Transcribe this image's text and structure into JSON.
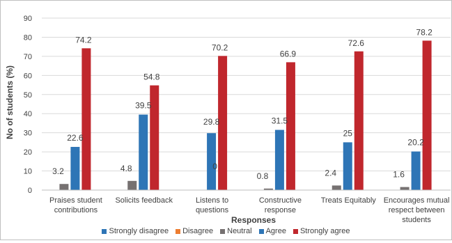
{
  "chart_data": {
    "type": "bar",
    "title": "",
    "xlabel": "Responses",
    "ylabel": "No of students (%)",
    "ylim": [
      0,
      90
    ],
    "yticks": [
      "0",
      "10",
      "20",
      "30",
      "40",
      "50",
      "60",
      "70",
      "80",
      "90"
    ],
    "grid": true,
    "legend_position": "bottom",
    "categories": [
      [
        "Praises student",
        "contributions"
      ],
      [
        "Solicits feedback"
      ],
      [
        "Listens to",
        "questions"
      ],
      [
        "Constructive",
        "response"
      ],
      [
        "Treats Equitably"
      ],
      [
        "Encourages mutual",
        "respect between",
        "students"
      ]
    ],
    "series": [
      {
        "name": "Strongly disagree",
        "color": "#2e75b6",
        "values": [
          null,
          null,
          null,
          null,
          null,
          null
        ],
        "labels": [
          "",
          "",
          "",
          "",
          "",
          ""
        ]
      },
      {
        "name": "Disagree",
        "color": "#ed7d31",
        "values": [
          null,
          null,
          null,
          null,
          null,
          null
        ],
        "labels": [
          "",
          "",
          "",
          "",
          "",
          ""
        ]
      },
      {
        "name": "Neutral",
        "color": "#767171",
        "values": [
          3.2,
          4.8,
          0,
          0.8,
          2.4,
          1.6
        ],
        "labels": [
          "3.2",
          "4.8",
          "0",
          "0.8",
          "2.4",
          "1.6"
        ]
      },
      {
        "name": "Agree",
        "color": "#2e75b6",
        "values": [
          22.6,
          39.5,
          29.8,
          31.5,
          25,
          20.2
        ],
        "labels": [
          "22.6",
          "39.5",
          "29.8",
          "31.5",
          "25",
          "20.2"
        ]
      },
      {
        "name": "Strongly agree",
        "color": "#c0272d",
        "values": [
          74.2,
          54.8,
          70.2,
          66.9,
          72.6,
          78.2
        ],
        "labels": [
          "74.2",
          "54.8",
          "70.2",
          "66.9",
          "72.6",
          "78.2"
        ]
      }
    ]
  }
}
